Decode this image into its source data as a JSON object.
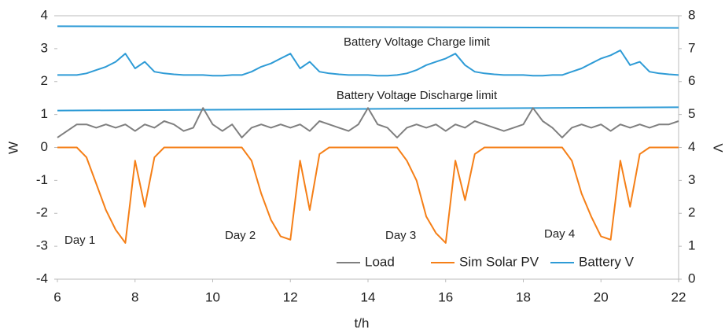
{
  "chart_data": {
    "type": "line",
    "xlabel": "t/h",
    "ylabel": "W",
    "y2label": "V",
    "x": [
      6,
      6.25,
      6.5,
      6.75,
      7,
      7.25,
      7.5,
      7.75,
      8,
      8.25,
      8.5,
      8.75,
      9,
      9.25,
      9.5,
      9.75,
      10,
      10.25,
      10.5,
      10.75,
      11,
      11.25,
      11.5,
      11.75,
      12,
      12.25,
      12.5,
      12.75,
      13,
      13.25,
      13.5,
      13.75,
      14,
      14.25,
      14.5,
      14.75,
      15,
      15.25,
      15.5,
      15.75,
      16,
      16.25,
      16.5,
      16.75,
      17,
      17.25,
      17.5,
      17.75,
      18,
      18.25,
      18.5,
      18.75,
      19,
      19.25,
      19.5,
      19.75,
      20,
      20.25,
      20.5,
      20.75,
      21,
      21.25,
      21.5,
      21.75,
      22
    ],
    "series": [
      {
        "name": "Load",
        "color": "#7f7f7f",
        "values": [
          0.3,
          0.5,
          0.7,
          0.7,
          0.6,
          0.7,
          0.6,
          0.7,
          0.5,
          0.7,
          0.6,
          0.8,
          0.7,
          0.5,
          0.6,
          1.2,
          0.7,
          0.5,
          0.7,
          0.3,
          0.6,
          0.7,
          0.6,
          0.7,
          0.6,
          0.7,
          0.5,
          0.8,
          0.7,
          0.6,
          0.5,
          0.7,
          1.2,
          0.7,
          0.6,
          0.3,
          0.6,
          0.7,
          0.6,
          0.7,
          0.5,
          0.7,
          0.6,
          0.8,
          0.7,
          0.6,
          0.5,
          0.6,
          0.7,
          1.2,
          0.8,
          0.6,
          0.3,
          0.6,
          0.7,
          0.6,
          0.7,
          0.5,
          0.7,
          0.6,
          0.7,
          0.6,
          0.7,
          0.7,
          0.8
        ]
      },
      {
        "name": "Sim Solar PV",
        "color": "#f57f17",
        "values": [
          0,
          0,
          0,
          -0.3,
          -1.1,
          -1.9,
          -2.5,
          -2.9,
          -0.4,
          -1.8,
          -0.3,
          0,
          0,
          0,
          0,
          0,
          0,
          0,
          0,
          0,
          -0.4,
          -1.4,
          -2.2,
          -2.7,
          -2.8,
          -0.4,
          -1.9,
          -0.2,
          0,
          0,
          0,
          0,
          0,
          0,
          0,
          0,
          -0.4,
          -1.0,
          -2.1,
          -2.6,
          -2.9,
          -0.4,
          -1.6,
          -0.2,
          0,
          0,
          0,
          0,
          0,
          0,
          0,
          0,
          0,
          -0.4,
          -1.4,
          -2.1,
          -2.7,
          -2.8,
          -0.4,
          -1.8,
          -0.2,
          0,
          0,
          0,
          0
        ]
      },
      {
        "name": "Battery V",
        "color": "#2e9bd6",
        "axis": "y2",
        "values": [
          6.2,
          6.2,
          6.2,
          6.25,
          6.35,
          6.45,
          6.6,
          6.85,
          6.4,
          6.6,
          6.3,
          6.25,
          6.22,
          6.2,
          6.2,
          6.2,
          6.18,
          6.18,
          6.2,
          6.2,
          6.3,
          6.45,
          6.55,
          6.7,
          6.85,
          6.4,
          6.6,
          6.3,
          6.25,
          6.22,
          6.2,
          6.2,
          6.2,
          6.18,
          6.18,
          6.2,
          6.25,
          6.35,
          6.5,
          6.6,
          6.7,
          6.85,
          6.5,
          6.3,
          6.25,
          6.22,
          6.2,
          6.2,
          6.2,
          6.18,
          6.18,
          6.2,
          6.2,
          6.3,
          6.4,
          6.55,
          6.7,
          6.8,
          6.95,
          6.5,
          6.6,
          6.3,
          6.25,
          6.22,
          6.2
        ]
      }
    ],
    "reference_lines": [
      {
        "label": "Battery  Voltage Charge limit",
        "x": [
          6,
          22
        ],
        "values": [
          7.68,
          7.63
        ],
        "axis": "y2",
        "color": "#2e9bd6"
      },
      {
        "label": "Battery  Voltage Discharge limit",
        "x": [
          6,
          22
        ],
        "values": [
          5.12,
          5.22
        ],
        "axis": "y2",
        "color": "#2e9bd6"
      }
    ],
    "annotations": [
      "Day 1",
      "Day 2",
      "Day 3",
      "Day 4"
    ],
    "xlim": [
      6,
      22
    ],
    "xticks": [
      6,
      8,
      10,
      12,
      14,
      16,
      18,
      20,
      22
    ],
    "ylim": [
      -4,
      4
    ],
    "yticks": [
      -4,
      -3,
      -2,
      -1,
      0,
      1,
      2,
      3,
      4
    ],
    "y2lim": [
      0,
      8
    ],
    "y2ticks": [
      0,
      1,
      2,
      3,
      4,
      5,
      6,
      7,
      8
    ],
    "legend": "lower right"
  }
}
